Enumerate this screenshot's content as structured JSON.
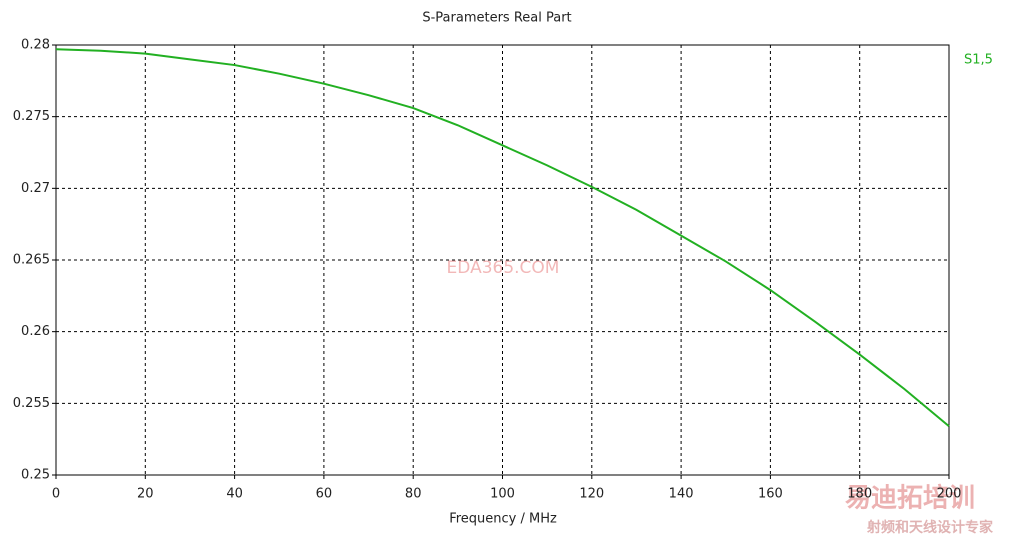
{
  "chart_data": {
    "type": "line",
    "title": "S-Parameters Real Part",
    "x_label": "Frequency / MHz",
    "x": [
      0,
      10,
      20,
      30,
      40,
      50,
      60,
      70,
      80,
      90,
      100,
      110,
      120,
      130,
      140,
      150,
      160,
      170,
      180,
      190,
      200
    ],
    "series": [
      {
        "name": "S1,5",
        "color": "#22b022",
        "values": [
          0.2797,
          0.2796,
          0.2794,
          0.279,
          0.2786,
          0.278,
          0.2773,
          0.2765,
          0.2756,
          0.2744,
          0.273,
          0.2716,
          0.2701,
          0.2685,
          0.2667,
          0.2649,
          0.2629,
          0.2607,
          0.2584,
          0.256,
          0.2534
        ]
      }
    ],
    "xlim": [
      0,
      200
    ],
    "xticks": [
      0,
      20,
      40,
      60,
      80,
      100,
      120,
      140,
      160,
      180,
      200
    ],
    "ylim": [
      0.25,
      0.28
    ],
    "yticks": [
      0.25,
      0.255,
      0.26,
      0.265,
      0.27,
      0.275,
      0.28
    ],
    "grid": true,
    "legend": "right",
    "watermarks": [
      "EDA365.COM",
      "易迪拓培训",
      "射频和天线设计专家"
    ]
  }
}
